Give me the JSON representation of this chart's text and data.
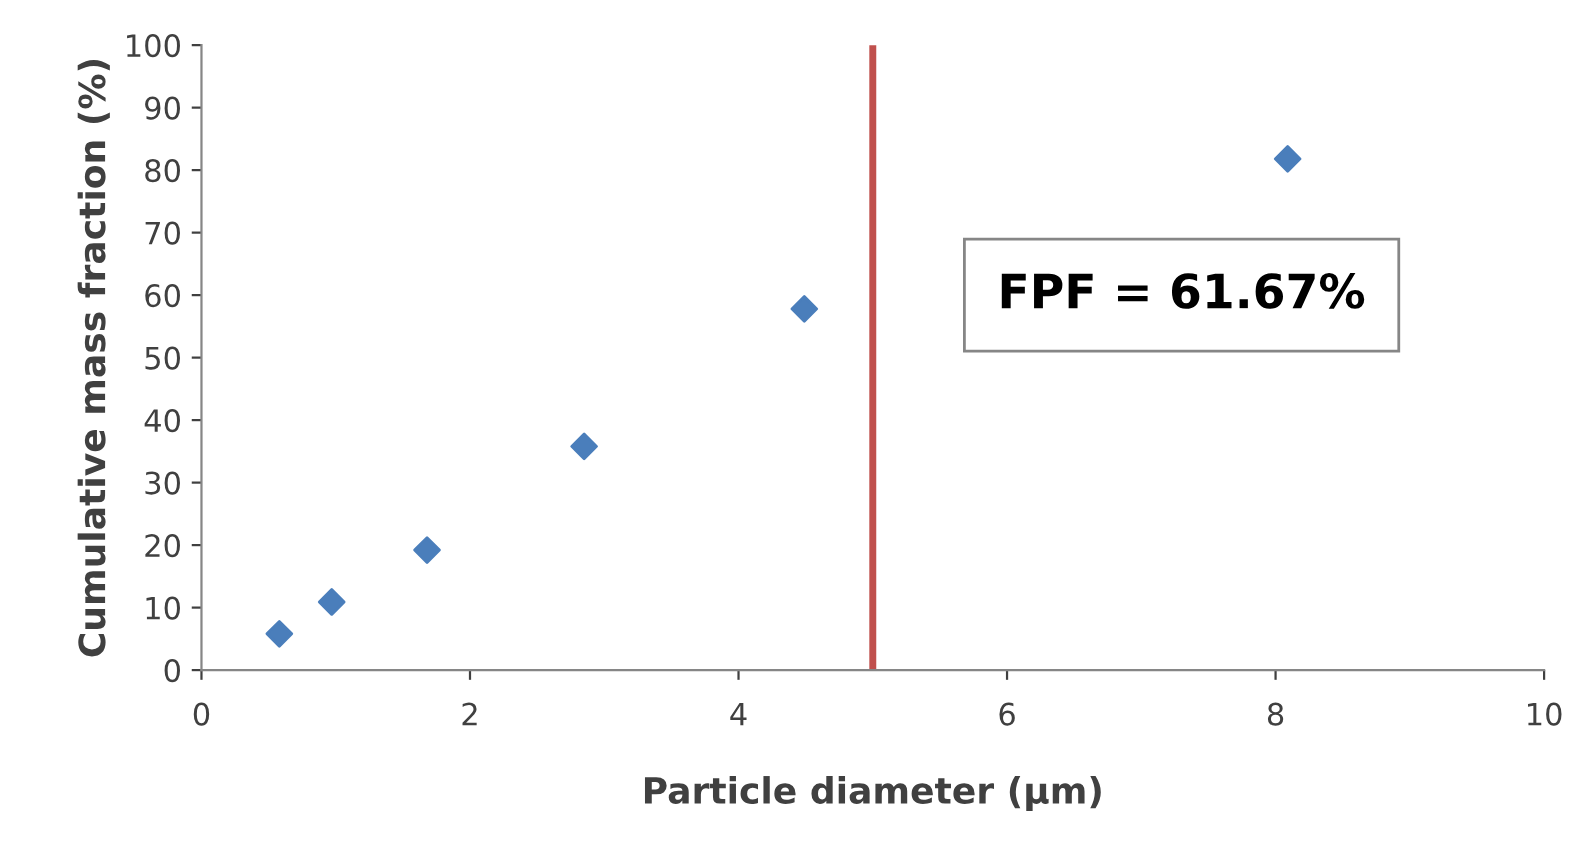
{
  "chart_data": {
    "type": "scatter",
    "xlabel": "Particle diameter (µm)",
    "ylabel": "Cumulative mass fraction (%)",
    "x": [
      0.58,
      0.97,
      1.68,
      2.85,
      4.49,
      8.09
    ],
    "values": [
      5.8,
      10.9,
      19.2,
      35.8,
      57.8,
      81.8
    ],
    "color": "#4a7ebb",
    "marker": "diamond",
    "xlim": [
      0,
      10
    ],
    "xticks": [
      0,
      2,
      4,
      6,
      8,
      10
    ],
    "ylim": [
      0,
      100
    ],
    "yticks": [
      0,
      10,
      20,
      30,
      40,
      50,
      60,
      70,
      80,
      90,
      100
    ],
    "grid": false,
    "ref_lines": [
      {
        "axis": "x",
        "value": 5,
        "label": null,
        "color": "#c0504d",
        "line_style": "solid"
      }
    ],
    "annotations": [
      "FPF = 61.67%"
    ]
  }
}
